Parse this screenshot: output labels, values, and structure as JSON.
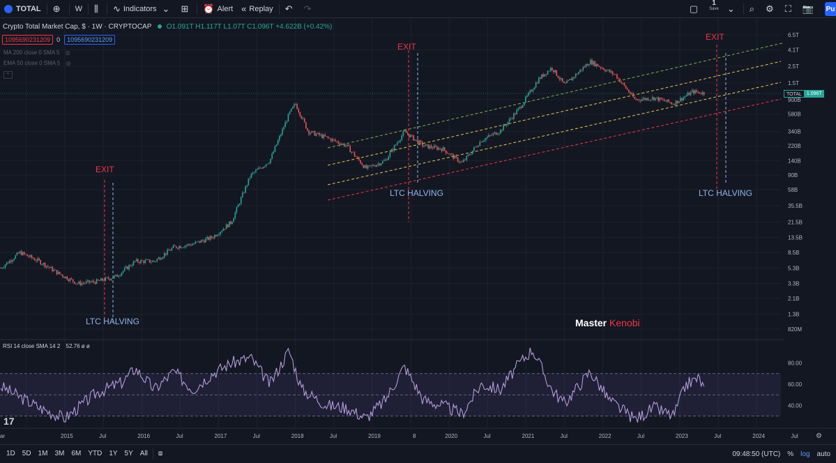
{
  "toolbar": {
    "symbol": "TOTAL",
    "interval": "W",
    "indicators_label": "Indicators",
    "alert_label": "Alert",
    "replay_label": "Replay",
    "save_count": "1",
    "save_label": "Save",
    "publish_label": "Pu"
  },
  "legend": {
    "title": "Crypto Total Market Cap, $ · 1W · CRYPTOCAP",
    "open": "O1.091T",
    "high": "H1.117T",
    "low": "L1.07T",
    "close": "C1.096T",
    "change": "+4.622B (+0.42%)",
    "box1": "1095690231209",
    "box2": "1095690231209",
    "zero": "0",
    "ind1": "MA 200 close 0 SMA 5",
    "ind2": "EMA 50 close 0 SMA 5"
  },
  "price_axis": [
    "6.5T",
    "4.1T",
    "2.5T",
    "1.5T",
    "900B",
    "580B",
    "340B",
    "220B",
    "140B",
    "90B",
    "58B",
    "35.5B",
    "21.5B",
    "13.5B",
    "8.5B",
    "5.3B",
    "3.3B",
    "2.1B",
    "1.3B",
    "820M"
  ],
  "current_price": {
    "symbol": "TOTAL",
    "value": "1.096T"
  },
  "rsi_axis": [
    "80.00",
    "60.00",
    "40.00"
  ],
  "rsi_legend": {
    "label": "RSI 14 close SMA 14 2",
    "value": "52.76 ø ø"
  },
  "time_axis": [
    "ar",
    "2015",
    "Jul",
    "2016",
    "Jul",
    "2017",
    "Jul",
    "2018",
    "Jul",
    "2019",
    "8",
    "2020",
    "Jul",
    "2021",
    "Jul",
    "2022",
    "Jul",
    "2023",
    "Jul",
    "2024",
    "Jul"
  ],
  "annotations": {
    "exit1": "EXIT",
    "exit2": "EXIT",
    "exit3": "EXIT",
    "halving1": "LTC HALVING",
    "halving2": "LTC HALVING",
    "halving3": "LTC HALVING"
  },
  "watermark": {
    "a": "Master",
    "b": "Kenobi"
  },
  "bottombar": {
    "ranges": [
      "1D",
      "5D",
      "1M",
      "3M",
      "6M",
      "YTD",
      "1Y",
      "5Y",
      "All"
    ],
    "time": "09:48:50 (UTC)",
    "pct": "%",
    "log": "log",
    "auto": "auto"
  },
  "colors": {
    "up": "#26a69a",
    "down": "#ef5350",
    "rsi": "#b39ddb",
    "accent": "#2962ff"
  },
  "chart_data": {
    "type": "candlestick",
    "scale": "log",
    "series_close": [
      [
        "2014-03",
        "5.3B"
      ],
      [
        "2014-06",
        "8.5B"
      ],
      [
        "2014-09",
        "6.5B"
      ],
      [
        "2014-12",
        "4.5B"
      ],
      [
        "2015-03",
        "3.3B"
      ],
      [
        "2015-06",
        "3.5B"
      ],
      [
        "2015-09",
        "4.1B"
      ],
      [
        "2015-12",
        "6.5B"
      ],
      [
        "2016-03",
        "6.5B"
      ],
      [
        "2016-06",
        "10B"
      ],
      [
        "2016-09",
        "11B"
      ],
      [
        "2016-12",
        "13.5B"
      ],
      [
        "2017-03",
        "21.5B"
      ],
      [
        "2017-06",
        "90B"
      ],
      [
        "2017-09",
        "140B"
      ],
      [
        "2017-12",
        "580B"
      ],
      [
        "2018-01",
        "800B"
      ],
      [
        "2018-03",
        "340B"
      ],
      [
        "2018-06",
        "280B"
      ],
      [
        "2018-09",
        "220B"
      ],
      [
        "2018-12",
        "110B"
      ],
      [
        "2019-03",
        "140B"
      ],
      [
        "2019-06",
        "340B"
      ],
      [
        "2019-09",
        "220B"
      ],
      [
        "2019-12",
        "200B"
      ],
      [
        "2020-03",
        "130B"
      ],
      [
        "2020-06",
        "260B"
      ],
      [
        "2020-09",
        "350B"
      ],
      [
        "2020-12",
        "700B"
      ],
      [
        "2021-03",
        "1.7T"
      ],
      [
        "2021-05",
        "2.4T"
      ],
      [
        "2021-07",
        "1.4T"
      ],
      [
        "2021-11",
        "2.9T"
      ],
      [
        "2022-03",
        "1.9T"
      ],
      [
        "2022-06",
        "0.9T"
      ],
      [
        "2022-09",
        "0.95T"
      ],
      [
        "2022-12",
        "0.8T"
      ],
      [
        "2023-03",
        "1.15T"
      ],
      [
        "2023-05",
        "1.096T"
      ]
    ],
    "rsi": [
      [
        "2014-03",
        58
      ],
      [
        "2014-09",
        38
      ],
      [
        "2015-01",
        28
      ],
      [
        "2015-06",
        52
      ],
      [
        "2015-10",
        62
      ],
      [
        "2015-12",
        75
      ],
      [
        "2016-03",
        55
      ],
      [
        "2016-06",
        72
      ],
      [
        "2016-09",
        55
      ],
      [
        "2016-12",
        70
      ],
      [
        "2017-03",
        80
      ],
      [
        "2017-06",
        85
      ],
      [
        "2017-09",
        60
      ],
      [
        "2017-12",
        92
      ],
      [
        "2018-02",
        55
      ],
      [
        "2018-06",
        40
      ],
      [
        "2018-09",
        38
      ],
      [
        "2018-12",
        28
      ],
      [
        "2019-03",
        45
      ],
      [
        "2019-06",
        77
      ],
      [
        "2019-09",
        45
      ],
      [
        "2019-12",
        40
      ],
      [
        "2020-03",
        32
      ],
      [
        "2020-06",
        60
      ],
      [
        "2020-09",
        55
      ],
      [
        "2020-12",
        80
      ],
      [
        "2021-02",
        93
      ],
      [
        "2021-05",
        55
      ],
      [
        "2021-07",
        42
      ],
      [
        "2021-11",
        72
      ],
      [
        "2022-02",
        45
      ],
      [
        "2022-06",
        27
      ],
      [
        "2022-09",
        38
      ],
      [
        "2022-12",
        30
      ],
      [
        "2023-02",
        60
      ],
      [
        "2023-04",
        66
      ],
      [
        "2023-05",
        52.76
      ]
    ],
    "rsi_levels": [
      70,
      50,
      30
    ],
    "ylim_rsi": [
      20,
      100
    ]
  }
}
